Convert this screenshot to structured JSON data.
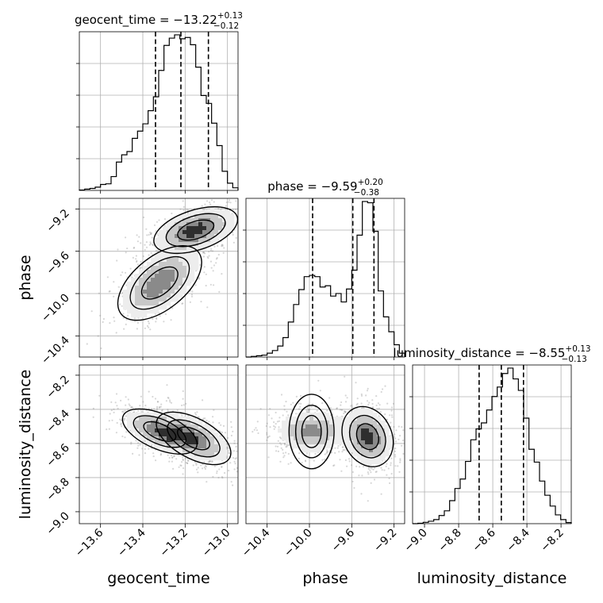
{
  "chart_data": {
    "type": "corner",
    "grid": true,
    "parameters": [
      {
        "name": "geocent_time",
        "title": {
          "main": "geocent_time = −13.22",
          "sup": "+0.13",
          "sub": "−0.12"
        },
        "median": -13.22,
        "upper_err": 0.13,
        "lower_err": 0.12,
        "range": [
          -13.7,
          -12.95
        ],
        "ticks": [
          -13.6,
          -13.4,
          -13.2,
          -13.0
        ],
        "tick_labels": [
          "−13.6",
          "−13.4",
          "−13.2",
          "−13.0"
        ],
        "histogram": {
          "bins": [
            -13.7,
            -13.675,
            -13.65,
            -13.625,
            -13.6,
            -13.575,
            -13.55,
            -13.525,
            -13.5,
            -13.475,
            -13.45,
            -13.425,
            -13.4,
            -13.375,
            -13.35,
            -13.325,
            -13.3,
            -13.275,
            -13.25,
            -13.225,
            -13.2,
            -13.175,
            -13.15,
            -13.125,
            -13.1,
            -13.075,
            -13.05,
            -13.025,
            -13.0,
            -12.975,
            -12.95
          ],
          "counts": [
            0.3,
            1.0,
            1.5,
            2.5,
            4.5,
            5.0,
            10.5,
            21.5,
            27.0,
            29.5,
            39.5,
            45.0,
            50.5,
            60.5,
            71.0,
            91.0,
            110.0,
            115.5,
            118.0,
            115.0,
            116.0,
            110.5,
            93.5,
            72.0,
            66.0,
            51.0,
            34.0,
            14.5,
            5.5,
            2.0
          ]
        }
      },
      {
        "name": "phase",
        "title": {
          "main": "phase = −9.59",
          "sup": "+0.20",
          "sub": "−0.38"
        },
        "median": -9.59,
        "upper_err": 0.2,
        "lower_err": 0.38,
        "range": [
          -10.6,
          -9.1
        ],
        "ticks": [
          -10.4,
          -10.0,
          -9.6,
          -9.2
        ],
        "tick_labels": [
          "−10.4",
          "−10.0",
          "−9.6",
          "−9.2"
        ],
        "histogram": {
          "bins": [
            -10.6,
            -10.55,
            -10.5,
            -10.45,
            -10.4,
            -10.35,
            -10.3,
            -10.25,
            -10.2,
            -10.15,
            -10.1,
            -10.05,
            -10.0,
            -9.95,
            -9.9,
            -9.85,
            -9.8,
            -9.75,
            -9.7,
            -9.65,
            -9.6,
            -9.55,
            -9.5,
            -9.45,
            -9.4,
            -9.35,
            -9.3,
            -9.25,
            -9.2,
            -9.15,
            -9.1
          ],
          "counts": [
            0.0,
            0.5,
            1.0,
            1.5,
            3.0,
            5.0,
            8.5,
            15.0,
            27.0,
            40.5,
            52.0,
            62.0,
            63.0,
            62.0,
            54.0,
            55.0,
            47.0,
            49.0,
            42.5,
            52.5,
            67.0,
            94.0,
            120.0,
            119.0,
            97.0,
            51.0,
            31.0,
            19.5,
            9.5,
            3.0
          ]
        }
      },
      {
        "name": "luminosity_distance",
        "title": {
          "main": "luminosity_distance = −8.55",
          "sup": "+0.13",
          "sub": "−0.13"
        },
        "median": -8.55,
        "upper_err": 0.13,
        "lower_err": 0.13,
        "range": [
          -9.07,
          -8.14
        ],
        "ticks": [
          -9.0,
          -8.8,
          -8.6,
          -8.4,
          -8.2
        ],
        "tick_labels": [
          "−9.0",
          "−8.8",
          "−8.6",
          "−8.4",
          "−8.2"
        ],
        "histogram": {
          "bins": [
            -9.07,
            -9.039,
            -9.008,
            -8.977,
            -8.946,
            -8.915,
            -8.884,
            -8.853,
            -8.822,
            -8.791,
            -8.76,
            -8.729,
            -8.698,
            -8.667,
            -8.636,
            -8.605,
            -8.574,
            -8.543,
            -8.512,
            -8.481,
            -8.45,
            -8.419,
            -8.388,
            -8.357,
            -8.326,
            -8.295,
            -8.264,
            -8.233,
            -8.202,
            -8.171,
            -8.14
          ],
          "counts": [
            0.0,
            0.3,
            1.0,
            1.8,
            3.0,
            6.0,
            9.5,
            17.0,
            26.0,
            33.0,
            46.0,
            62.0,
            70.0,
            74.5,
            84.0,
            94.0,
            101.0,
            111.0,
            115.0,
            107.0,
            98.5,
            78.0,
            55.0,
            45.5,
            31.5,
            21.0,
            13.0,
            6.5,
            3.0,
            0.8
          ]
        }
      }
    ]
  }
}
